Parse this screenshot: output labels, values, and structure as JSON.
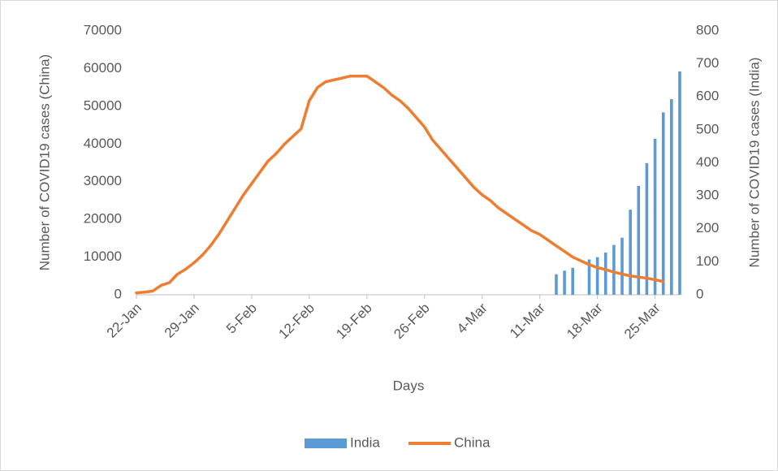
{
  "chart_data": {
    "type": "bar-line",
    "x_label": "Days",
    "y_label": "Number of COVID19 cases (China)",
    "y2_label": "Number of COVID19 cases (India)",
    "categories": [
      "22-Jan",
      null,
      null,
      null,
      null,
      null,
      null,
      "29-Jan",
      null,
      null,
      null,
      null,
      null,
      null,
      "5-Feb",
      null,
      null,
      null,
      null,
      null,
      null,
      "12-Feb",
      null,
      null,
      null,
      null,
      null,
      null,
      "19-Feb",
      null,
      null,
      null,
      null,
      null,
      null,
      "26-Feb",
      null,
      null,
      null,
      null,
      null,
      null,
      "4-Mar",
      null,
      null,
      null,
      null,
      null,
      null,
      "11-Mar",
      null,
      null,
      null,
      null,
      null,
      null,
      "18-Mar",
      null,
      null,
      null,
      null,
      null,
      null,
      "25-Mar",
      null,
      null,
      null
    ],
    "ylim": [
      0,
      70000
    ],
    "yticks": [
      0,
      10000,
      20000,
      30000,
      40000,
      50000,
      60000,
      70000
    ],
    "y2lim": [
      0,
      800
    ],
    "y2ticks": [
      0,
      100,
      200,
      300,
      400,
      500,
      600,
      700,
      800
    ],
    "legend": "bottom",
    "series": [
      {
        "name": "India",
        "type": "bar",
        "axis": "y2",
        "color": "#5b9bd5",
        "values": [
          null,
          null,
          null,
          null,
          null,
          null,
          null,
          null,
          null,
          null,
          null,
          null,
          null,
          null,
          null,
          null,
          null,
          null,
          null,
          null,
          null,
          null,
          null,
          null,
          null,
          null,
          null,
          null,
          null,
          null,
          null,
          null,
          null,
          null,
          null,
          null,
          null,
          null,
          null,
          null,
          null,
          null,
          null,
          null,
          null,
          null,
          null,
          null,
          null,
          null,
          null,
          62,
          73,
          82,
          null,
          107,
          114,
          128,
          151,
          173,
          258,
          330,
          399,
          473,
          553,
          593,
          677
        ]
      },
      {
        "name": "China",
        "type": "line",
        "color": "#ed7d31",
        "values": [
          500,
          700,
          1000,
          2500,
          3200,
          5500,
          6800,
          8500,
          10500,
          13000,
          16000,
          19500,
          23000,
          26500,
          29500,
          32500,
          35500,
          37500,
          40000,
          42000,
          44000,
          51500,
          55000,
          56500,
          57000,
          57500,
          58000,
          58000,
          58000,
          56500,
          55000,
          53000,
          51500,
          49500,
          47000,
          44500,
          41000,
          38500,
          36000,
          33500,
          31000,
          28500,
          26500,
          25000,
          23000,
          21500,
          20000,
          18500,
          17000,
          16000,
          14500,
          13000,
          11500,
          10000,
          9000,
          8000,
          7200,
          6700,
          6000,
          5500,
          5000,
          4700,
          4400,
          4000,
          3500,
          null,
          null
        ]
      }
    ]
  }
}
